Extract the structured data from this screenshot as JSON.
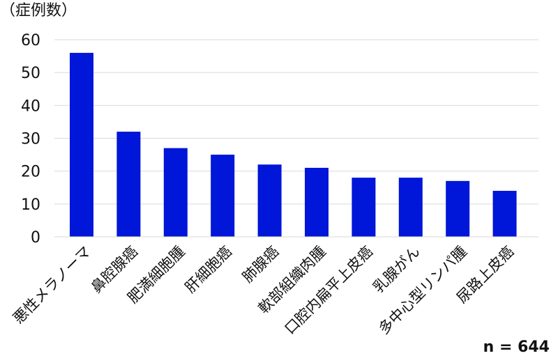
{
  "chart_data": {
    "type": "bar",
    "ylabel": "（症例数）",
    "categories": [
      "悪性メラノーマ",
      "鼻腔腺癌",
      "肥満細胞腫",
      "肝細胞癌",
      "肺腺癌",
      "軟部組織肉腫",
      "口腔内扁平上皮癌",
      "乳腺がん",
      "多中心型リンパ腫",
      "尿路上皮癌"
    ],
    "values": [
      56,
      32,
      27,
      25,
      22,
      21,
      18,
      18,
      17,
      14
    ],
    "ylim": [
      0,
      60
    ],
    "yticks": [
      0,
      10,
      20,
      30,
      40,
      50,
      60
    ],
    "grid": true,
    "bar_color": "#0016d8",
    "note": "n = 644"
  }
}
